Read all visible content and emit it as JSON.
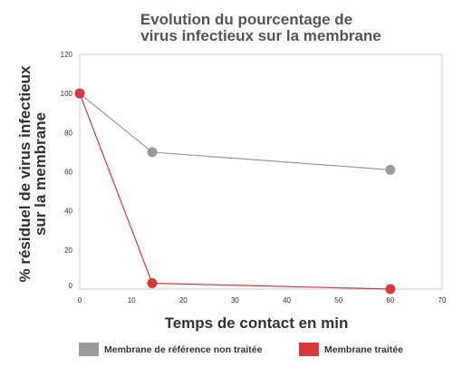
{
  "chart_data": {
    "type": "line",
    "title_lines": [
      "Evolution du pourcentage de",
      "virus infectieux sur la membrane"
    ],
    "xlabel": "Temps de contact en min",
    "ylabel_lines": [
      "% résiduel de virus infectieux",
      "sur la membrane"
    ],
    "xlim": [
      0,
      70
    ],
    "ylim": [
      0,
      120
    ],
    "x_ticks": [
      0,
      10,
      20,
      30,
      40,
      50,
      60,
      70
    ],
    "y_ticks": [
      0,
      20,
      40,
      60,
      80,
      100,
      120
    ],
    "grid": false,
    "legend_position": "bottom",
    "series": [
      {
        "name": "Membrane de référence non traitée",
        "color": "#9b9b9b",
        "x": [
          0,
          14,
          60
        ],
        "y": [
          100,
          70,
          61
        ]
      },
      {
        "name": "Membrane traitée",
        "color": "#d9383a",
        "x": [
          0,
          14,
          60
        ],
        "y": [
          100,
          3,
          0
        ]
      }
    ]
  }
}
